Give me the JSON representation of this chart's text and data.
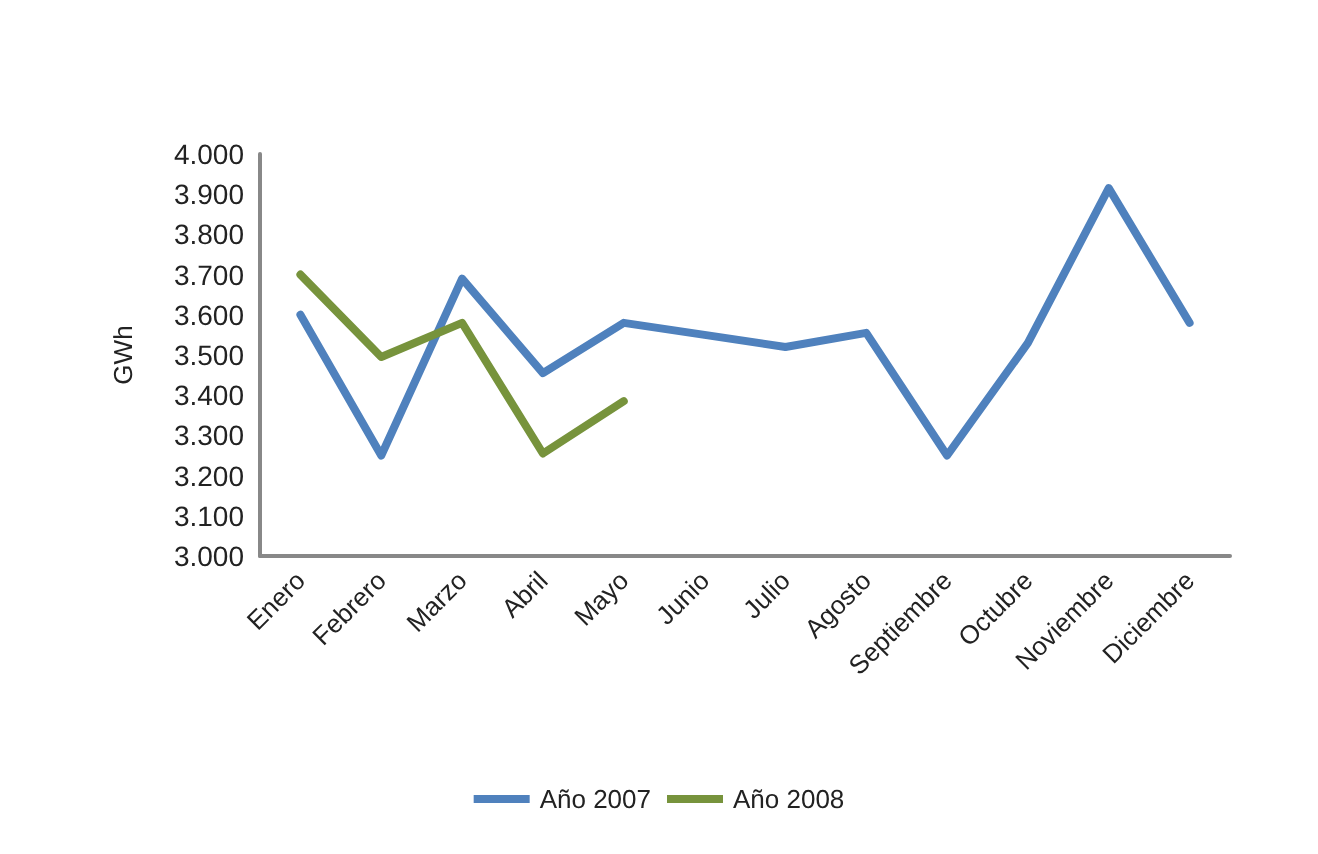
{
  "chart_data": {
    "type": "line",
    "ylabel": "GWh",
    "categories": [
      "Enero",
      "Febrero",
      "Marzo",
      "Abril",
      "Mayo",
      "Junio",
      "Julio",
      "Agosto",
      "Septiembre",
      "Octubre",
      "Noviembre",
      "Diciembre"
    ],
    "series": [
      {
        "name": "Año 2007",
        "color": "#4f81bd",
        "values": [
          3600,
          3250,
          3690,
          3455,
          3580,
          3550,
          3520,
          3555,
          3250,
          3530,
          3915,
          3580
        ]
      },
      {
        "name": "Año 2008",
        "color": "#77933c",
        "values": [
          3700,
          3495,
          3580,
          3255,
          3385,
          null,
          null,
          null,
          null,
          null,
          null,
          null
        ]
      }
    ],
    "ylim": [
      3000,
      4000
    ],
    "yticks": [
      {
        "value": 3000,
        "label": "3.000"
      },
      {
        "value": 3100,
        "label": "3.100"
      },
      {
        "value": 3200,
        "label": "3.200"
      },
      {
        "value": 3300,
        "label": "3.300"
      },
      {
        "value": 3400,
        "label": "3.400"
      },
      {
        "value": 3500,
        "label": "3.500"
      },
      {
        "value": 3600,
        "label": "3.600"
      },
      {
        "value": 3700,
        "label": "3.700"
      },
      {
        "value": 3800,
        "label": "3.800"
      },
      {
        "value": 3900,
        "label": "3.900"
      },
      {
        "value": 4000,
        "label": "4.000"
      }
    ],
    "grid": false,
    "legend": "bottom",
    "marker": "none",
    "line_style": "solid"
  }
}
